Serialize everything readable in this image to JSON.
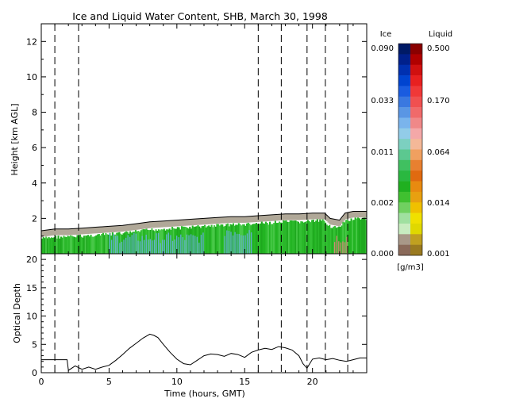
{
  "chart_data": [
    {
      "type": "heatmap",
      "title": "Ice and Liquid Water Content, SHB, March 30, 1998",
      "xlabel": "",
      "ylabel": "Height [km AGL]",
      "xlim": [
        0,
        24
      ],
      "ylim": [
        0,
        13
      ],
      "x_ticks": [
        "0",
        "5",
        "10",
        "15",
        "20"
      ],
      "y_ticks": [
        "2",
        "4",
        "6",
        "8",
        "10",
        "12"
      ],
      "vertical_dashed_lines_hours": [
        1.0,
        2.75,
        16.0,
        17.7,
        19.6,
        20.95,
        22.6
      ],
      "cloud_top_km": {
        "x": [
          0.0,
          1.0,
          2.0,
          3.0,
          4.0,
          5.0,
          6.0,
          7.0,
          8.0,
          9.0,
          10.0,
          11.0,
          12.0,
          13.0,
          14.0,
          15.0,
          16.0,
          17.0,
          18.0,
          19.0,
          20.0,
          20.9,
          21.3,
          22.0,
          22.4,
          23.0,
          24.0
        ],
        "y": [
          1.3,
          1.4,
          1.4,
          1.45,
          1.5,
          1.55,
          1.6,
          1.7,
          1.8,
          1.85,
          1.9,
          1.95,
          2.0,
          2.05,
          2.1,
          2.1,
          2.15,
          2.2,
          2.25,
          2.25,
          2.3,
          2.3,
          2.0,
          1.9,
          2.3,
          2.4,
          2.4
        ]
      },
      "features": [
        {
          "kind": "boundary_layer_cloud",
          "x_range": [
            0,
            24
          ],
          "y_range": [
            0,
            2.3
          ],
          "dominant_ice_color": "#22bb22"
        },
        {
          "kind": "ice_core",
          "x_range": [
            5,
            12
          ],
          "y_range": [
            0,
            1.2
          ],
          "color": "#6aaee6"
        },
        {
          "kind": "ice_core",
          "x_range": [
            13.5,
            15.5
          ],
          "y_range": [
            0,
            1.8
          ],
          "color": "#6aaee6"
        },
        {
          "kind": "liquid_patch",
          "x_range": [
            21.6,
            22.6
          ],
          "y_range": [
            0,
            1.2
          ],
          "color": "#e88080"
        }
      ]
    },
    {
      "type": "line",
      "title": "",
      "xlabel": "Time (hours, GMT)",
      "ylabel": "Optical Depth",
      "xlim": [
        0,
        24
      ],
      "ylim": [
        0,
        21
      ],
      "x_ticks": [
        "0",
        "5",
        "10",
        "15",
        "20"
      ],
      "y_ticks": [
        "0",
        "5",
        "10",
        "15",
        "20"
      ],
      "vertical_dashed_lines_hours": [
        1.0,
        2.75,
        16.0,
        17.7,
        19.6,
        20.95,
        22.6
      ],
      "series": [
        {
          "name": "",
          "x": [
            0.0,
            1.0,
            1.9,
            2.0,
            2.5,
            3.0,
            3.5,
            4.0,
            4.5,
            5.0,
            5.5,
            6.0,
            6.5,
            7.0,
            7.5,
            8.0,
            8.3,
            8.6,
            9.0,
            9.5,
            10.0,
            10.5,
            11.0,
            11.5,
            12.0,
            12.5,
            13.0,
            13.5,
            14.0,
            14.5,
            15.0,
            15.5,
            16.0,
            16.5,
            17.0,
            17.5,
            18.0,
            18.5,
            19.0,
            19.3,
            19.6,
            20.0,
            20.5,
            21.0,
            21.5,
            22.0,
            22.5,
            23.0,
            23.5,
            24.0
          ],
          "y": [
            2.3,
            2.3,
            2.3,
            0.4,
            1.2,
            0.6,
            1.0,
            0.6,
            1.0,
            1.3,
            2.2,
            3.2,
            4.3,
            5.2,
            6.1,
            6.8,
            6.6,
            6.2,
            5.0,
            3.6,
            2.4,
            1.6,
            1.4,
            2.2,
            3.0,
            3.3,
            3.2,
            2.9,
            3.4,
            3.2,
            2.7,
            3.6,
            4.0,
            4.3,
            4.1,
            4.6,
            4.4,
            4.0,
            3.0,
            1.6,
            0.8,
            2.4,
            2.6,
            2.3,
            2.5,
            2.2,
            2.0,
            2.3,
            2.6,
            2.6
          ]
        }
      ]
    }
  ],
  "colorbar": {
    "ice_header": "Ice",
    "liquid_header": "Liquid",
    "unit": "[g/m3]",
    "ice_labels": [
      "0.090",
      "0.033",
      "0.011",
      "0.002",
      "0.000"
    ],
    "liquid_labels": [
      "0.500",
      "0.170",
      "0.064",
      "0.014",
      "0.001"
    ],
    "ice_colors": [
      "#001a66",
      "#00208c",
      "#0030b0",
      "#0044d0",
      "#1a5ce0",
      "#3a78e0",
      "#5a96e4",
      "#7ab4ec",
      "#92cce8",
      "#7cd0c0",
      "#5cc890",
      "#40c060",
      "#2ab840",
      "#20b020",
      "#40c030",
      "#70d060",
      "#a0e0a0",
      "#c8ecc0",
      "#a89888",
      "#8a6a5a"
    ],
    "liquid_colors": [
      "#8a0000",
      "#b00000",
      "#d01010",
      "#e82020",
      "#f03838",
      "#f05050",
      "#f06a6a",
      "#f08888",
      "#f4a8a8",
      "#f4b898",
      "#f0a060",
      "#e88030",
      "#e06a10",
      "#e88a10",
      "#e8a010",
      "#f0c000",
      "#f0e000",
      "#e0d800",
      "#c0a020",
      "#9a7a20"
    ]
  }
}
